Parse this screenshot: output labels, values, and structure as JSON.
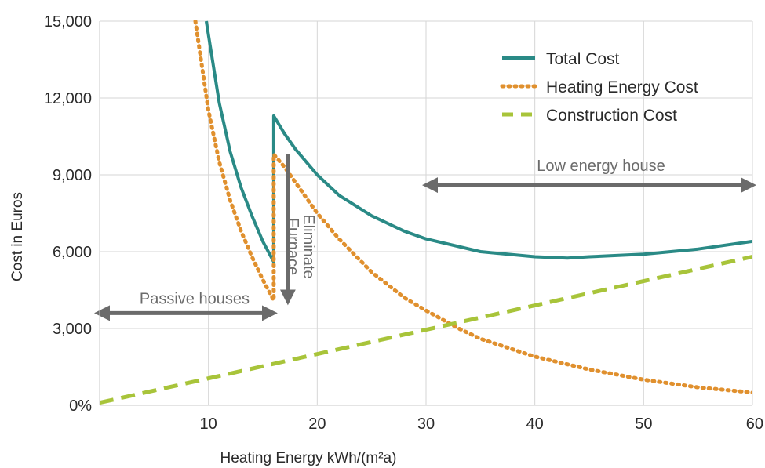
{
  "chart_data": {
    "type": "line",
    "title": "",
    "xlabel": "Heating Energy kWh/(m²a)",
    "ylabel": "Cost in Euros",
    "xlim": [
      0,
      60
    ],
    "ylim": [
      0,
      15000
    ],
    "x_ticks": [
      10,
      20,
      30,
      40,
      50,
      60
    ],
    "x_tick_labels": [
      "10",
      "20",
      "30",
      "40",
      "50",
      "60"
    ],
    "y_ticks": [
      0,
      3000,
      6000,
      9000,
      12000,
      15000
    ],
    "y_tick_labels": [
      "0%",
      "3,000",
      "6,000",
      "9,000",
      "12,000",
      "15,000"
    ],
    "grid": true,
    "legend_position": "top-right",
    "series": [
      {
        "name": "Total Cost",
        "color": "#2a8a86",
        "style": "solid",
        "x": [
          9.8,
          11,
          12,
          13,
          14,
          15,
          16,
          16,
          17,
          18,
          20,
          22,
          25,
          28,
          30,
          35,
          40,
          43,
          45,
          50,
          55,
          60
        ],
        "y": [
          15000,
          11800,
          9900,
          8500,
          7400,
          6400,
          5600,
          11300,
          10600,
          10000,
          9000,
          8200,
          7400,
          6800,
          6500,
          6000,
          5800,
          5750,
          5800,
          5900,
          6100,
          6400
        ]
      },
      {
        "name": "Heating Energy Cost",
        "color": "#e0902e",
        "style": "dotted",
        "x": [
          8.8,
          10,
          11,
          12,
          13,
          14,
          15,
          16,
          16,
          17,
          18,
          20,
          22,
          25,
          28,
          30,
          33,
          35,
          40,
          45,
          50,
          55,
          60
        ],
        "y": [
          15000,
          11500,
          9500,
          8000,
          6800,
          5800,
          4900,
          4100,
          9800,
          9300,
          8700,
          7500,
          6500,
          5200,
          4200,
          3700,
          3000,
          2600,
          1900,
          1400,
          1000,
          700,
          500
        ]
      },
      {
        "name": "Construction Cost",
        "color": "#a8c43a",
        "style": "dashed",
        "x": [
          0,
          60
        ],
        "y": [
          100,
          5800
        ]
      }
    ],
    "annotations": [
      {
        "text": "Passive houses",
        "x_from": 0,
        "x_to": 16,
        "y": 3600
      },
      {
        "text": "Low energy house",
        "x_from": 30,
        "x_to": 60,
        "y": 8600
      },
      {
        "text_line1": "Eliminate",
        "text_line2": "Furnace",
        "x": 17.3,
        "y_from": 9800,
        "y_to": 4000
      }
    ]
  }
}
